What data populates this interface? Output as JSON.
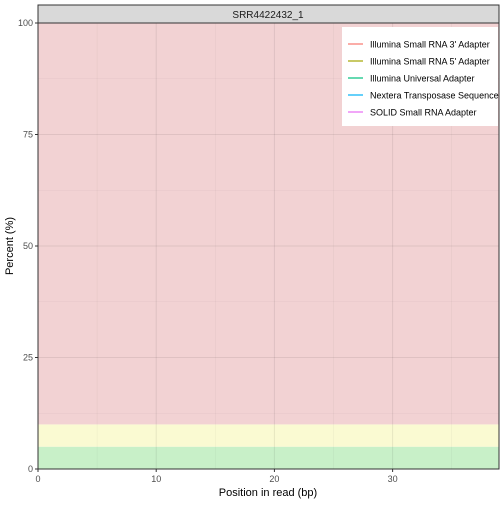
{
  "chart_data": {
    "type": "line",
    "title": "",
    "facet_label": "SRR4422432_1",
    "xlabel": "Position in read (bp)",
    "ylabel": "Percent (%)",
    "xlim": [
      0,
      39
    ],
    "ylim": [
      0,
      100
    ],
    "x_ticks": [
      0,
      10,
      20,
      30
    ],
    "y_ticks": [
      0,
      25,
      50,
      75,
      100
    ],
    "grid": true,
    "legend_position": "top-right",
    "background_bands": [
      {
        "from": 0,
        "to": 5,
        "color": "#c8f0c8"
      },
      {
        "from": 5,
        "to": 10,
        "color": "#fafad2"
      },
      {
        "from": 10,
        "to": 100,
        "color": "#f2d2d3"
      }
    ],
    "series": [
      {
        "name": "Illumina Small RNA 3' Adapter",
        "color": "#f8766d",
        "x": [
          1,
          38
        ],
        "values": [
          0,
          0
        ]
      },
      {
        "name": "Illumina Small RNA 5' Adapter",
        "color": "#a3a500",
        "x": [
          1,
          38
        ],
        "values": [
          0,
          0
        ]
      },
      {
        "name": "Illumina Universal Adapter",
        "color": "#00bf7d",
        "x": [
          1,
          38
        ],
        "values": [
          0,
          0
        ]
      },
      {
        "name": "Nextera Transposase Sequence",
        "color": "#00b0f6",
        "x": [
          1,
          38
        ],
        "values": [
          0,
          0
        ]
      },
      {
        "name": "SOLID Small RNA Adapter",
        "color": "#e76bf3",
        "x": [
          1,
          38
        ],
        "values": [
          0,
          0
        ]
      }
    ]
  }
}
